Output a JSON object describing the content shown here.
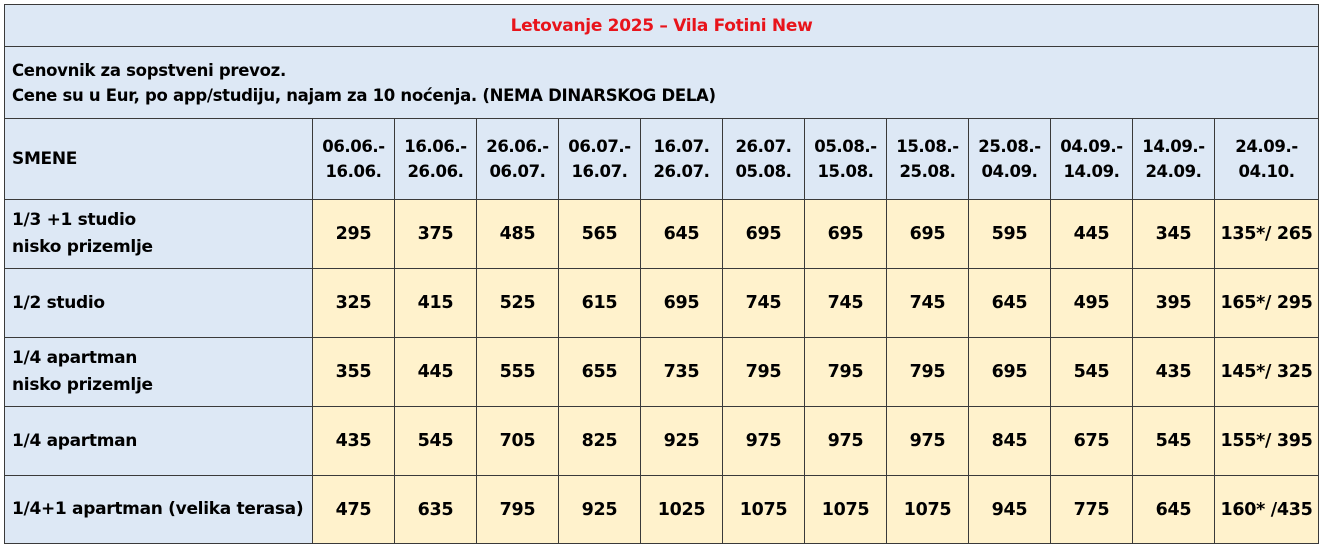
{
  "title": "Letovanje 2025 – Vila Fotini New",
  "info": {
    "line1": "Cenovnik za sopstveni prevoz.",
    "line2": "Cene su u Eur, po app/studiju, najam za 10 noćenja. (NEMA DINARSKOG DELA)"
  },
  "header": {
    "label": "SMENE",
    "periods": [
      {
        "from": "06.06.-",
        "to": "16.06."
      },
      {
        "from": "16.06.-",
        "to": "26.06."
      },
      {
        "from": "26.06.-",
        "to": "06.07."
      },
      {
        "from": "06.07.-",
        "to": "16.07."
      },
      {
        "from": "16.07.",
        "to": "26.07."
      },
      {
        "from": "26.07.",
        "to": "05.08."
      },
      {
        "from": "05.08.-",
        "to": "15.08."
      },
      {
        "from": "15.08.-",
        "to": "25.08."
      },
      {
        "from": "25.08.-",
        "to": "04.09."
      },
      {
        "from": "04.09.-",
        "to": "14.09."
      },
      {
        "from": "14.09.-",
        "to": "24.09."
      },
      {
        "from": "24.09.-",
        "to": "04.10."
      }
    ]
  },
  "rows": [
    {
      "label1": "1/3 +1 studio",
      "label2": "nisko prizemlje",
      "prices": [
        "295",
        "375",
        "485",
        "565",
        "645",
        "695",
        "695",
        "695",
        "595",
        "445",
        "345",
        "135*/ 265"
      ]
    },
    {
      "label1": "1/2 studio",
      "label2": "",
      "prices": [
        "325",
        "415",
        "525",
        "615",
        "695",
        "745",
        "745",
        "745",
        "645",
        "495",
        "395",
        "165*/ 295"
      ]
    },
    {
      "label1": "1/4 apartman",
      "label2": "nisko prizemlje",
      "prices": [
        "355",
        "445",
        "555",
        "655",
        "735",
        "795",
        "795",
        "795",
        "695",
        "545",
        "435",
        "145*/ 325"
      ]
    },
    {
      "label1": "1/4 apartman",
      "label2": "",
      "prices": [
        "435",
        "545",
        "705",
        "825",
        "925",
        "975",
        "975",
        "975",
        "845",
        "675",
        "545",
        "155*/ 395"
      ]
    },
    {
      "label1": "1/4+1 apartman (velika terasa)",
      "label2": "",
      "prices": [
        "475",
        "635",
        "795",
        "925",
        "1025",
        "1075",
        "1075",
        "1075",
        "945",
        "775",
        "645",
        "160* /435"
      ]
    }
  ]
}
